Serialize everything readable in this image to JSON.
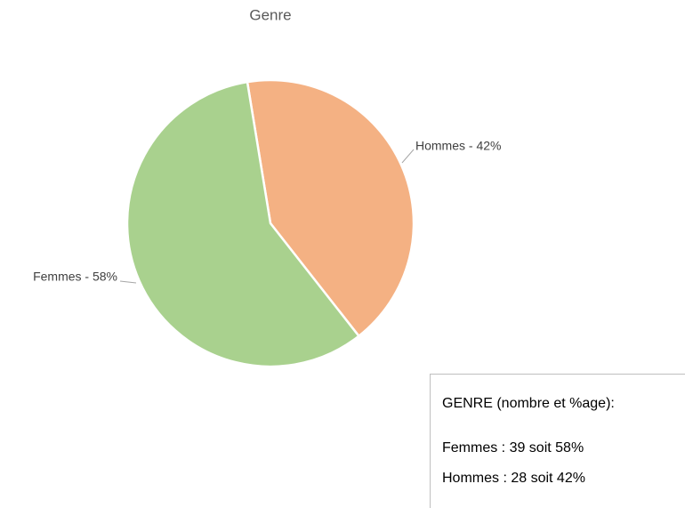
{
  "chart_data": {
    "type": "pie",
    "title": "Genre",
    "categories": [
      "Hommes",
      "Femmes"
    ],
    "values": [
      42,
      58
    ],
    "value_labels": [
      "Hommes - 42%",
      "Femmes - 58%"
    ],
    "colors": [
      "#f4b183",
      "#a9d18e"
    ]
  },
  "text_box": {
    "title": "GENRE (nombre et %age):",
    "lines": [
      "Femmes : 39 soit 58%",
      "Hommes : 28 soit 42%"
    ]
  }
}
